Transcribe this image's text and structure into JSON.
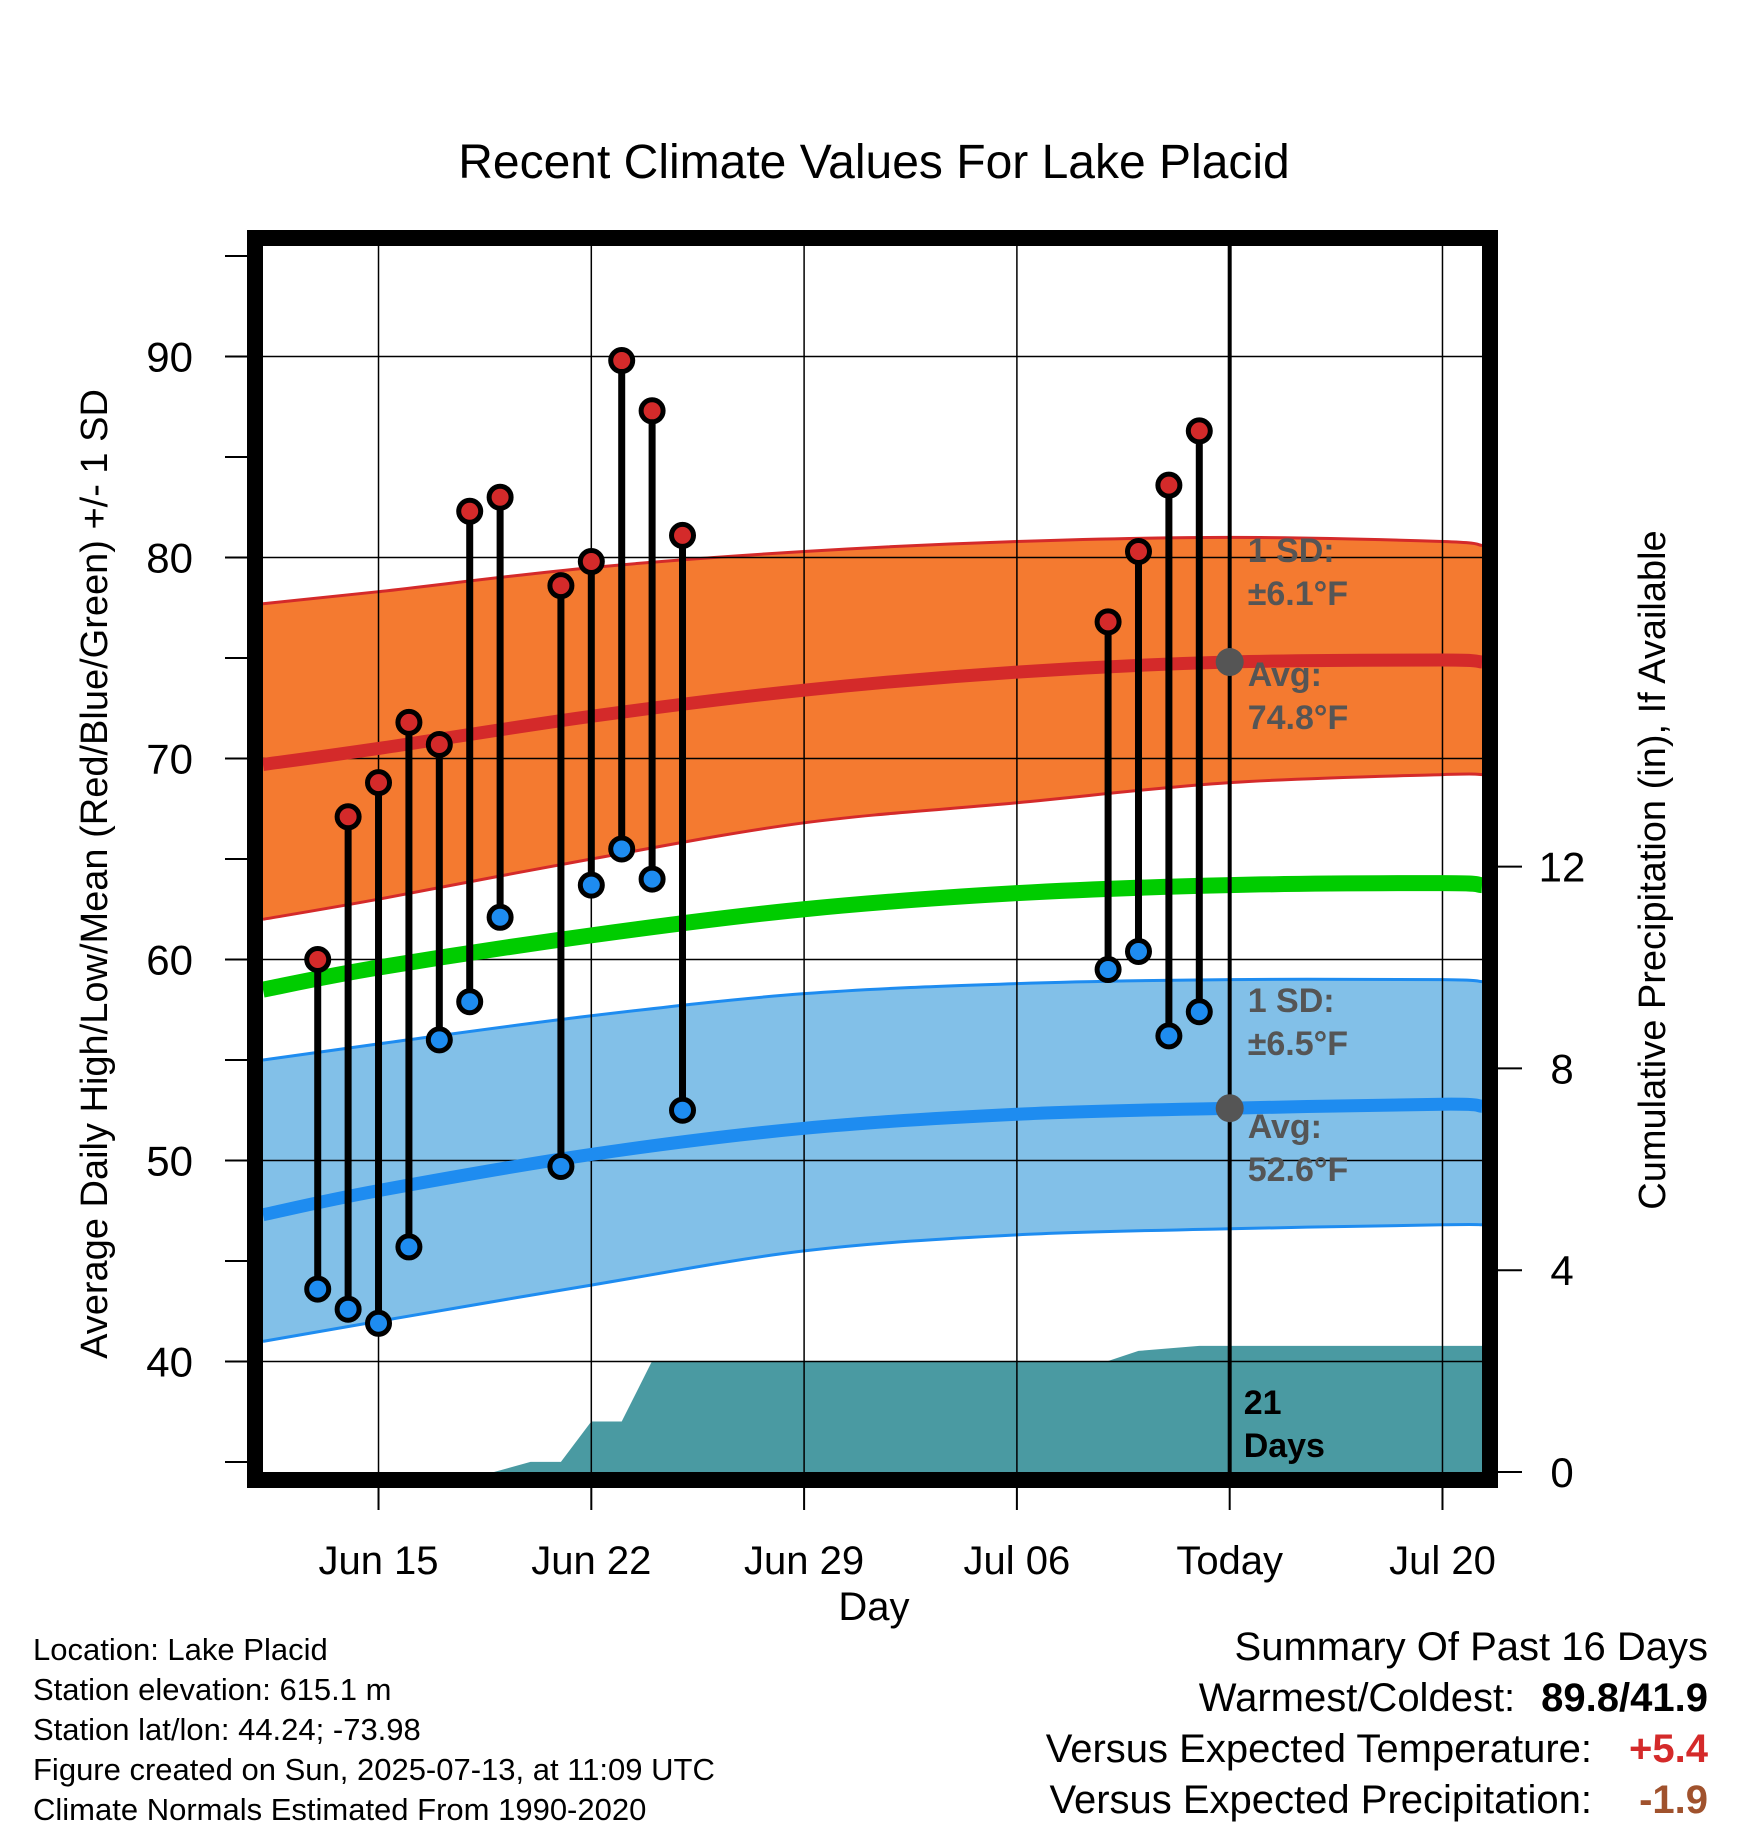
{
  "title": "Recent Climate Values For Lake Placid",
  "xlabel": "Day",
  "ylabel_left": "Average Daily High/Low/Mean (Red/Blue/Green) +/- 1 SD",
  "ylabel_right": "Cumulative Precipitation (in), If Available",
  "footer": {
    "location": "Location: Lake Placid",
    "elevation": "Station elevation: 615.1 m",
    "latlon": "Station lat/lon: 44.24; -73.98",
    "created": "Figure created on Sun, 2025-07-13, at 11:09 UTC",
    "normals": "Climate Normals Estimated From 1990-2020"
  },
  "summary": {
    "heading": "Summary Of Past 16 Days",
    "warm_cold_label": "Warmest/Coldest:",
    "warm_cold_value": "89.8/41.9",
    "temp_label": "Versus Expected Temperature:",
    "temp_value": "+5.4",
    "precip_label": "Versus Expected Precipitation:",
    "precip_value": "-1.9"
  },
  "chart_data": {
    "type": "line",
    "x_axis": {
      "range_days": [
        -31.8,
        8.3
      ],
      "ticks": [
        {
          "day": -28,
          "label": "Jun 15"
        },
        {
          "day": -21,
          "label": "Jun 22"
        },
        {
          "day": -14,
          "label": "Jun 29"
        },
        {
          "day": -7,
          "label": "Jul 06"
        },
        {
          "day": 0,
          "label": "Today"
        },
        {
          "day": 7,
          "label": "Jul 20"
        }
      ],
      "today": 0
    },
    "y_axis_left": {
      "range": [
        34.5,
        95.5
      ],
      "ticks": [
        40,
        50,
        60,
        70,
        80,
        90
      ],
      "minor_step": 5
    },
    "y_axis_right": {
      "range": [
        0,
        24.3
      ],
      "ticks": [
        0,
        4,
        8,
        12
      ]
    },
    "grid": true,
    "normals_x": [
      -31.8,
      -28,
      -21,
      -14,
      -7,
      0,
      7,
      8.3
    ],
    "normal_high": [
      69.7,
      70.5,
      72.1,
      73.4,
      74.3,
      74.8,
      74.9,
      74.8
    ],
    "normal_high_upper": [
      77.7,
      78.3,
      79.5,
      80.3,
      80.8,
      81.0,
      80.8,
      80.6
    ],
    "normal_high_lower": [
      62.0,
      63.0,
      65.0,
      66.8,
      67.8,
      68.8,
      69.2,
      69.2
    ],
    "normal_mean": [
      58.5,
      59.6,
      61.2,
      62.5,
      63.3,
      63.7,
      63.8,
      63.7
    ],
    "normal_low": [
      47.3,
      48.5,
      50.3,
      51.6,
      52.3,
      52.6,
      52.8,
      52.7
    ],
    "normal_low_upper": [
      55.0,
      55.8,
      57.2,
      58.3,
      58.8,
      59.0,
      59.0,
      58.9
    ],
    "normal_low_lower": [
      41.0,
      42.0,
      43.8,
      45.5,
      46.3,
      46.6,
      46.8,
      46.8
    ],
    "daily": [
      {
        "day": -30,
        "high": 60.0,
        "low": 43.6
      },
      {
        "day": -29,
        "high": 67.1,
        "low": 42.6
      },
      {
        "day": -28,
        "high": 68.8,
        "low": 41.9
      },
      {
        "day": -27,
        "high": 71.8,
        "low": 45.7
      },
      {
        "day": -26,
        "high": 70.7,
        "low": 56.0
      },
      {
        "day": -25,
        "high": 82.3,
        "low": 57.9
      },
      {
        "day": -24,
        "high": 83.0,
        "low": 62.1
      },
      {
        "day": -22,
        "high": 78.6,
        "low": 49.7
      },
      {
        "day": -21,
        "high": 79.8,
        "low": 63.7
      },
      {
        "day": -20,
        "high": 89.8,
        "low": 65.5
      },
      {
        "day": -19,
        "high": 87.3,
        "low": 64.0
      },
      {
        "day": -18,
        "high": 81.1,
        "low": 52.5
      },
      {
        "day": -4,
        "high": 76.8,
        "low": 59.5
      },
      {
        "day": -3,
        "high": 80.3,
        "low": 60.4
      },
      {
        "day": -2,
        "high": 83.6,
        "low": 56.2
      },
      {
        "day": -1,
        "high": 86.3,
        "low": 57.4
      }
    ],
    "precip_cumulative": {
      "x": [
        -31.8,
        -24.2,
        -23.0,
        -22.0,
        -21.0,
        -20.0,
        -19.0,
        -4.0,
        -3.0,
        -1.0,
        8.3
      ],
      "y": [
        0,
        0,
        0.2,
        0.2,
        1.0,
        1.0,
        2.2,
        2.2,
        2.4,
        2.5,
        2.5
      ]
    },
    "annotations": {
      "high_sd": "1 SD:",
      "high_sd_value": "±6.1°F",
      "high_avg": "Avg:",
      "high_avg_value": "74.8°F",
      "low_sd": "1 SD:",
      "low_sd_value": "±6.5°F",
      "low_avg": "Avg:",
      "low_avg_value": "52.6°F",
      "days_count": "21",
      "days_word": "Days"
    },
    "colors": {
      "high_band": "#f47a30",
      "high_line": "#d42a2a",
      "low_band": "#82c0e8",
      "low_line": "#1e8cf0",
      "mean_line": "#00cc00",
      "precip": "#4a9aa2",
      "high_dot": "#d42a2a",
      "low_dot": "#1e8cf0",
      "annotation": "#555555"
    }
  }
}
